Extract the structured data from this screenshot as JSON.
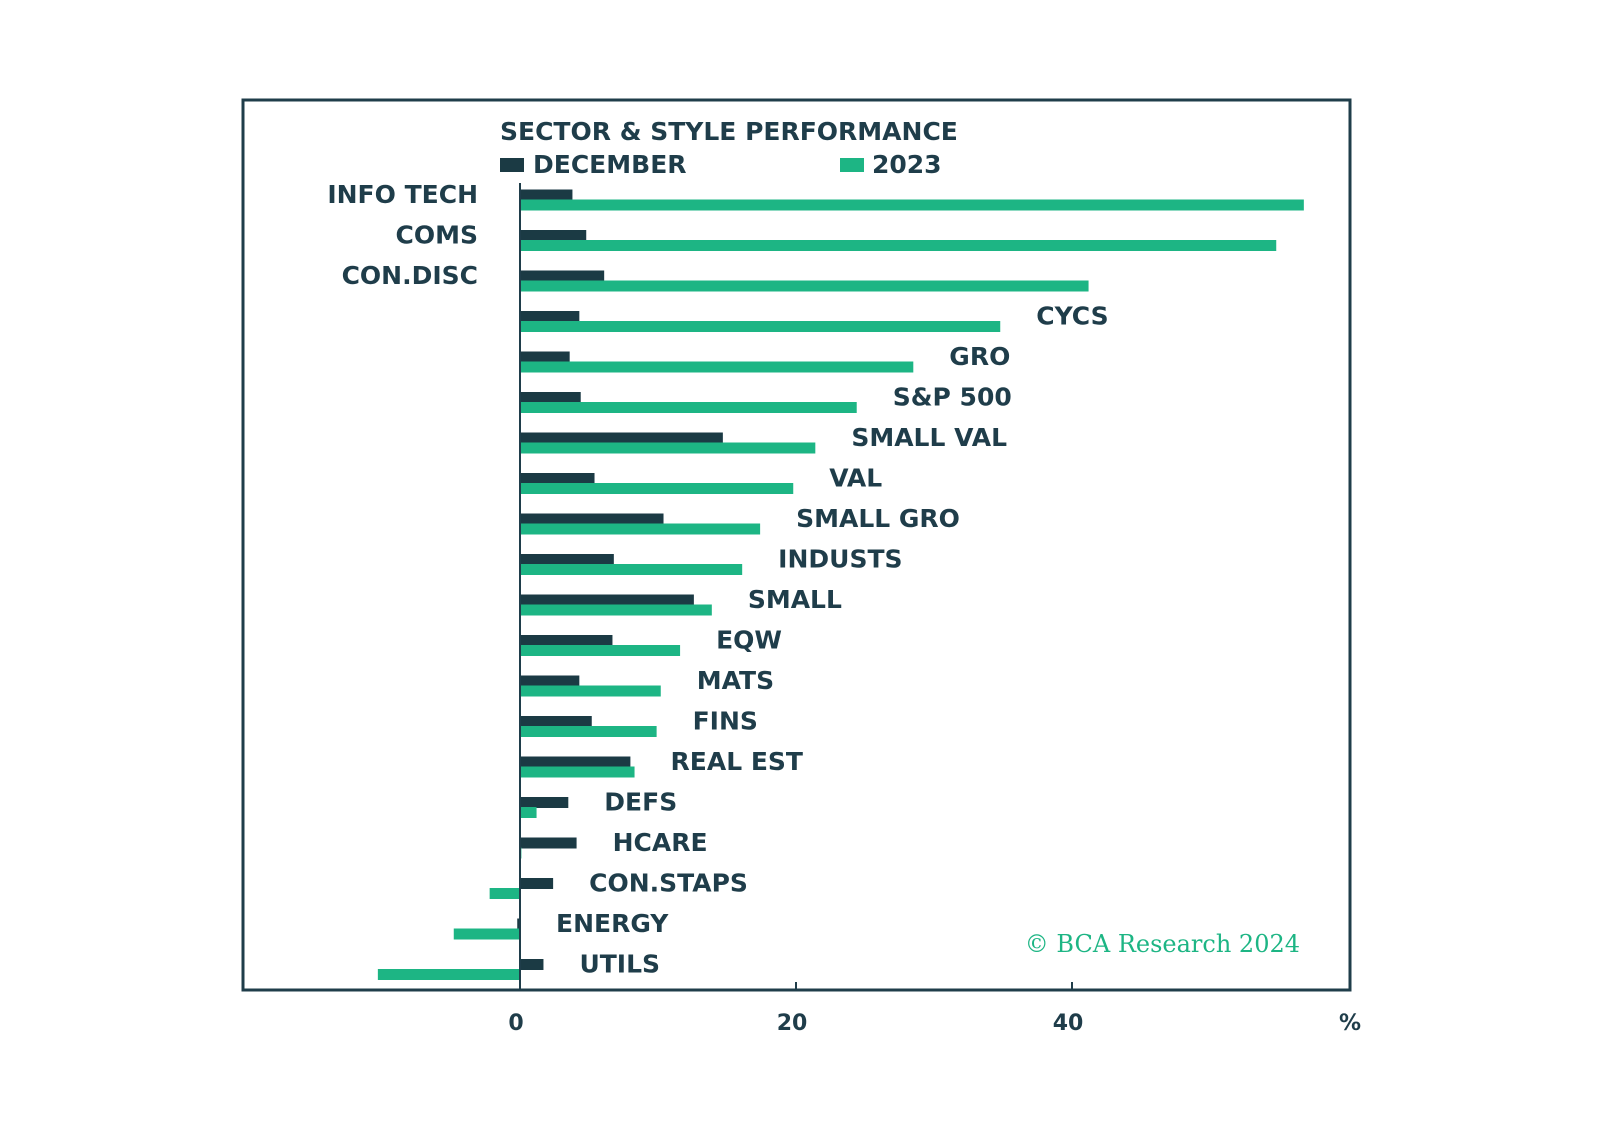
{
  "colors": {
    "december": "#1b3a44",
    "year": "#1db584",
    "frame": "#1f3d4a",
    "text": "#1f3d4a"
  },
  "chart_data": {
    "type": "bar",
    "orientation": "horizontal",
    "title": "SECTOR & STYLE PERFORMANCE",
    "unit_label": "%",
    "xlim": [
      -20,
      60
    ],
    "xticks": [
      0,
      20,
      40
    ],
    "grid": false,
    "legend_position": "top",
    "copyright": "© BCA Research 2024",
    "categories": [
      "INFO TECH",
      "COMS",
      "CON.DISC",
      "CYCS",
      "GRO",
      "S&P 500",
      "SMALL VAL",
      "VAL",
      "SMALL GRO",
      "INDUSTS",
      "SMALL",
      "EQW",
      "MATS",
      "FINS",
      "REAL EST",
      "DEFS",
      "HCARE",
      "CON.STAPS",
      "ENERGY",
      "UTILS"
    ],
    "series": [
      {
        "name": "DECEMBER",
        "values": [
          3.8,
          4.8,
          6.1,
          4.3,
          3.6,
          4.4,
          14.7,
          5.4,
          10.4,
          6.8,
          12.6,
          6.7,
          4.3,
          5.2,
          8.0,
          3.5,
          4.1,
          2.4,
          -0.2,
          1.7
        ]
      },
      {
        "name": "2023",
        "values": [
          56.8,
          54.8,
          41.2,
          34.8,
          28.5,
          24.4,
          21.4,
          19.8,
          17.4,
          16.1,
          13.9,
          11.6,
          10.2,
          9.9,
          8.3,
          1.2,
          0.1,
          -2.2,
          -4.8,
          -10.3
        ]
      }
    ]
  }
}
